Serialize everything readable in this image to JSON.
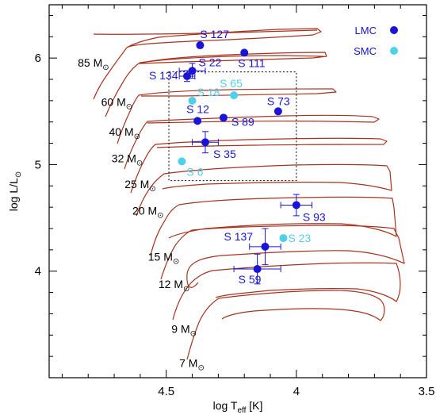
{
  "chart_data": {
    "type": "scatter",
    "xlabel": "log T",
    "xlabel_sub": "eff",
    "xlabel_unit": "[K]",
    "ylabel": "log L/L",
    "ylabel_sub": "⊙",
    "xlim": [
      4.95,
      3.5
    ],
    "ylim": [
      3.0,
      6.5
    ],
    "x_ticks": [
      4.5,
      4.0,
      3.5
    ],
    "x_tick_labels": [
      "4.5",
      "4",
      "3.5"
    ],
    "y_ticks": [
      4,
      5,
      6
    ],
    "y_tick_labels": [
      "4",
      "5",
      "6"
    ],
    "x_reversed": true,
    "grid": false,
    "legend_position": "top-right",
    "legend": [
      {
        "label": "LMC",
        "color": "#1a14d6"
      },
      {
        "label": "SMC",
        "color": "#4fd0ea"
      }
    ],
    "colors": {
      "LMC": "#1a14d6",
      "SMC": "#4fd0ea",
      "tracks": "#a8321f"
    },
    "box_region": {
      "x": [
        4.49,
        4.0
      ],
      "y": [
        4.85,
        5.87
      ],
      "style": "dotted"
    },
    "mass_labels": [
      {
        "num": "85",
        "unit": "M",
        "sub": "⊙",
        "x": 4.84,
        "y": 5.92
      },
      {
        "num": "60",
        "unit": "M",
        "sub": "⊙",
        "x": 4.75,
        "y": 5.55
      },
      {
        "num": "40",
        "unit": "M",
        "sub": "⊙",
        "x": 4.72,
        "y": 5.27
      },
      {
        "num": "32",
        "unit": "M",
        "sub": "⊙",
        "x": 4.71,
        "y": 5.02
      },
      {
        "num": "25",
        "unit": "M",
        "sub": "⊙",
        "x": 4.66,
        "y": 4.78
      },
      {
        "num": "20",
        "unit": "M",
        "sub": "⊙",
        "x": 4.63,
        "y": 4.53
      },
      {
        "num": "15",
        "unit": "M",
        "sub": "⊙",
        "x": 4.57,
        "y": 4.1
      },
      {
        "num": "12",
        "unit": "M",
        "sub": "⊙",
        "x": 4.53,
        "y": 3.84
      },
      {
        "num": "9",
        "unit": "M",
        "sub": "⊙",
        "x": 4.48,
        "y": 3.42
      },
      {
        "num": "7",
        "unit": "M",
        "sub": "⊙",
        "x": 4.45,
        "y": 3.1
      }
    ],
    "series": [
      {
        "name": "LMC",
        "points": [
          {
            "label": "S 127",
            "x": 4.37,
            "y": 6.12
          },
          {
            "label": "S 111",
            "x": 4.2,
            "y": 6.05
          },
          {
            "label": "S 22",
            "x": 4.4,
            "y": 5.88,
            "xerr": 0.05,
            "yerr": 0.07
          },
          {
            "label": "S 134",
            "x": 4.42,
            "y": 5.83,
            "xerr": 0.03,
            "yerr": 0.05
          },
          {
            "label": "S 73",
            "x": 4.07,
            "y": 5.5
          },
          {
            "label": "S 12",
            "x": 4.38,
            "y": 5.41
          },
          {
            "label": "S 89",
            "x": 4.28,
            "y": 5.44
          },
          {
            "label": "S 35",
            "x": 4.35,
            "y": 5.21,
            "xerr": 0.05,
            "yerr": 0.1
          },
          {
            "label": "S 93",
            "x": 4.0,
            "y": 4.62,
            "xerr": 0.06,
            "yerr": 0.1
          },
          {
            "label": "S 137",
            "x": 4.12,
            "y": 4.23,
            "xerr": 0.06,
            "yerr": 0.17
          },
          {
            "label": "S 59",
            "x": 4.15,
            "y": 4.02,
            "xerr": 0.09,
            "yerr": 0.14
          }
        ]
      },
      {
        "name": "SMC",
        "points": [
          {
            "label": "S 18",
            "x": 4.4,
            "y": 5.6
          },
          {
            "label": "S 65",
            "x": 4.24,
            "y": 5.65
          },
          {
            "label": "S 6",
            "x": 4.44,
            "y": 5.03
          },
          {
            "label": "S 23",
            "x": 4.05,
            "y": 4.31
          }
        ]
      }
    ]
  }
}
